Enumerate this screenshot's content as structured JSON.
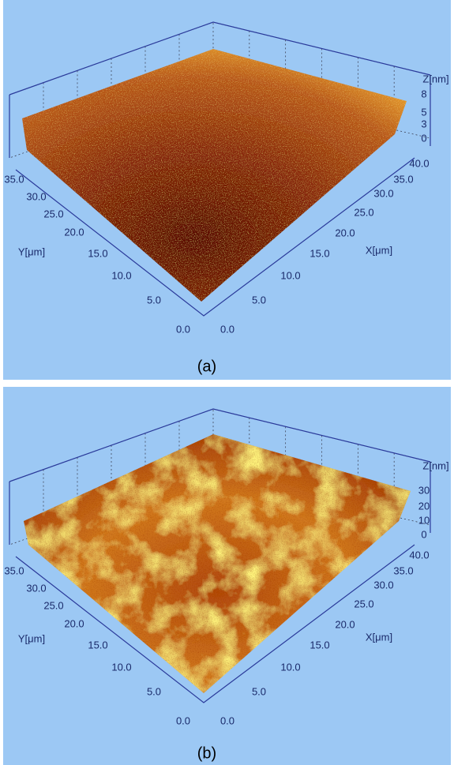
{
  "panels": [
    {
      "caption": "(a)",
      "z_axis_label": "Z[nm]",
      "z_ticks": [
        "8",
        "5",
        "3",
        "0"
      ],
      "x_axis_label": "X[μm]",
      "x_ticks": [
        "0.0",
        "5.0",
        "10.0",
        "15.0",
        "20.0",
        "25.0",
        "30.0",
        "35.0",
        "40.0"
      ],
      "y_axis_label": "Y[μm]",
      "y_ticks": [
        "0.0",
        "5.0",
        "10.0",
        "15.0",
        "20.0",
        "25.0",
        "30.0",
        "35.0"
      ]
    },
    {
      "caption": "(b)",
      "z_axis_label": "Z[nm]",
      "z_ticks": [
        "30",
        "20",
        "10",
        "0"
      ],
      "x_axis_label": "X[μm]",
      "x_ticks": [
        "0.0",
        "5.0",
        "10.0",
        "15.0",
        "20.0",
        "25.0",
        "30.0",
        "35.0",
        "40.0"
      ],
      "y_axis_label": "Y[μm]",
      "y_ticks": [
        "0.0",
        "5.0",
        "10.0",
        "15.0",
        "20.0",
        "25.0",
        "30.0",
        "35.0"
      ]
    }
  ]
}
